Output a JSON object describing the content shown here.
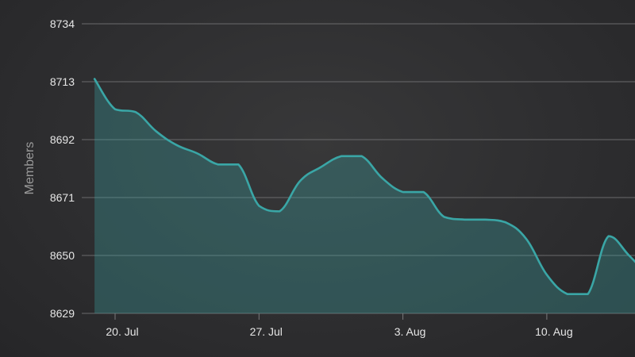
{
  "chart_data": {
    "type": "area",
    "title": "",
    "xlabel": "",
    "ylabel": "Members",
    "ylim": [
      8629,
      8734
    ],
    "yticks": [
      "8629",
      "8650",
      "8671",
      "8692",
      "8713",
      "8734"
    ],
    "xticks": [
      {
        "label": "20. Jul",
        "date": "2023-07-20"
      },
      {
        "label": "27. Jul",
        "date": "2023-07-27"
      },
      {
        "label": "3. Aug",
        "date": "2023-08-03"
      },
      {
        "label": "10. Aug",
        "date": "2023-08-10"
      }
    ],
    "grid": true,
    "legend": "none",
    "colors": {
      "line": "#3aa6a6",
      "fill": "#3aa6a6"
    },
    "series": [
      {
        "x": [
          "2023-07-19",
          "2023-07-20",
          "2023-07-21",
          "2023-07-22",
          "2023-07-23",
          "2023-07-24",
          "2023-07-25",
          "2023-07-26",
          "2023-07-27",
          "2023-07-28",
          "2023-07-29",
          "2023-07-30",
          "2023-07-31",
          "2023-08-01",
          "2023-08-02",
          "2023-08-03",
          "2023-08-04",
          "2023-08-05",
          "2023-08-06",
          "2023-08-07",
          "2023-08-08",
          "2023-08-09",
          "2023-08-10",
          "2023-08-11",
          "2023-08-12",
          "2023-08-13",
          "2023-08-14",
          "2023-08-15"
        ],
        "values": [
          8714,
          8703,
          8702,
          8695,
          8690,
          8687,
          8683,
          8683,
          8668,
          8666,
          8677,
          8682,
          8686,
          8686,
          8678,
          8673,
          8673,
          8664,
          8663,
          8663,
          8662,
          8656,
          8643,
          8636,
          8636,
          8657,
          8650,
          8642
        ]
      }
    ]
  }
}
